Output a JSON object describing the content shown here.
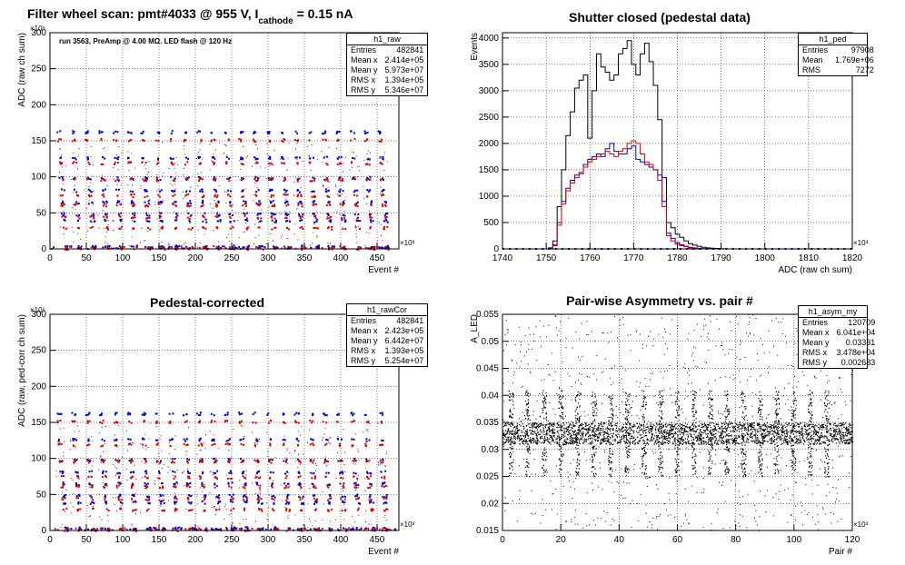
{
  "panels": [
    {
      "id": "raw",
      "title": "Filter wheel scan: pmt#4033 @   955 V, I",
      "title_sub": "cathode",
      "title_tail": " = 0.15 nA",
      "annotation": "run 3563, PreAmp @ 4.00 MΩ.  LED flash @  120 Hz",
      "stats": {
        "name": "h1_raw",
        "rows": [
          [
            "Entries",
            "482841"
          ],
          [
            "Mean x",
            "2.414e+05"
          ],
          [
            "Mean y",
            "5.973e+07"
          ],
          [
            "RMS x",
            "1.394e+05"
          ],
          [
            "RMS y",
            "5.346e+07"
          ]
        ]
      },
      "chart_data": {
        "type": "scatter",
        "title": "Filter wheel scan: pmt#4033 @   955 V, I cathode = 0.15 nA",
        "xlabel": "Event #",
        "ylabel": "ADC (raw ch sum)",
        "x_exponent": "×10³",
        "y_exponent": "×10⁶",
        "xlim": [
          0,
          480
        ],
        "ylim": [
          0,
          300
        ],
        "xticks": [
          0,
          50,
          100,
          150,
          200,
          250,
          300,
          350,
          400,
          450
        ],
        "yticks": [
          0,
          50,
          100,
          150,
          200,
          250,
          300
        ],
        "series": [
          {
            "color": "#0000cc",
            "levels": [
              163,
              127,
              99,
              82,
              66,
              49,
              40,
              4
            ]
          },
          {
            "color": "#dd0000",
            "levels": [
              152,
              120,
              97,
              75,
              62,
              45,
              30,
              2
            ]
          }
        ]
      }
    },
    {
      "id": "ped",
      "title": "Shutter closed (pedestal data)",
      "stats": {
        "name": "h1_ped",
        "rows": [
          [
            "Entries",
            "97908"
          ],
          [
            "Mean",
            "1.769e+06"
          ],
          [
            "RMS",
            "7272"
          ]
        ]
      },
      "chart_data": {
        "type": "line",
        "title": "Shutter closed (pedestal data)",
        "xlabel": "ADC (raw ch sum)",
        "ylabel": "Events",
        "x_exponent": "×10³",
        "xlim": [
          1740,
          1820
        ],
        "ylim": [
          0,
          4100
        ],
        "xticks": [
          1740,
          1750,
          1760,
          1770,
          1780,
          1790,
          1800,
          1810,
          1820
        ],
        "yticks": [
          0,
          500,
          1000,
          1500,
          2000,
          2500,
          3000,
          3500,
          4000
        ],
        "x": [
          1751,
          1752,
          1753,
          1754,
          1755,
          1756,
          1757,
          1758,
          1759,
          1760,
          1761,
          1762,
          1763,
          1764,
          1765,
          1766,
          1767,
          1768,
          1769,
          1770,
          1771,
          1772,
          1773,
          1774,
          1775,
          1776,
          1777,
          1778,
          1779,
          1780,
          1781,
          1782,
          1783,
          1784,
          1785,
          1786,
          1787,
          1788,
          1789,
          1790,
          1791,
          1792
        ],
        "series": [
          {
            "color": "#000000",
            "values": [
              20,
              150,
              800,
              1500,
              2150,
              2600,
              3050,
              3200,
              3300,
              2100,
              3000,
              3700,
              3450,
              3350,
              3200,
              3300,
              3700,
              3800,
              3950,
              3500,
              3300,
              3700,
              3900,
              3550,
              3100,
              2450,
              1350,
              500,
              400,
              280,
              220,
              150,
              100,
              70,
              50,
              30,
              20,
              12,
              8,
              5,
              3,
              0
            ]
          },
          {
            "color": "#0000cc",
            "values": [
              10,
              80,
              500,
              900,
              1150,
              1300,
              1400,
              1450,
              1600,
              1700,
              1750,
              1800,
              1750,
              1900,
              2000,
              1850,
              1800,
              1800,
              1900,
              1950,
              1700,
              1650,
              1600,
              1550,
              1500,
              1400,
              900,
              300,
              200,
              120,
              80,
              50,
              30,
              20,
              10,
              5,
              2,
              0,
              0,
              0,
              0,
              0
            ]
          },
          {
            "color": "#dd0000",
            "values": [
              5,
              60,
              450,
              850,
              1100,
              1250,
              1350,
              1420,
              1550,
              1650,
              1700,
              1750,
              1800,
              1850,
              1800,
              1750,
              1850,
              1900,
              2000,
              2050,
              2000,
              1800,
              1650,
              1600,
              1500,
              1300,
              800,
              250,
              150,
              90,
              60,
              40,
              20,
              10,
              5,
              2,
              0,
              0,
              0,
              0,
              0,
              0
            ]
          }
        ]
      }
    },
    {
      "id": "rawcor",
      "title": "Pedestal-corrected",
      "stats": {
        "name": "h1_rawCor",
        "rows": [
          [
            "Entries",
            "482841"
          ],
          [
            "Mean x",
            "2.423e+05"
          ],
          [
            "Mean y",
            "6.442e+07"
          ],
          [
            "RMS x",
            "1.393e+05"
          ],
          [
            "RMS y",
            "5.254e+07"
          ]
        ]
      },
      "chart_data": {
        "type": "scatter",
        "title": "Pedestal-corrected",
        "xlabel": "Event #",
        "ylabel": "ADC (raw, ped-corr ch sum)",
        "x_exponent": "×10³",
        "y_exponent": "×10⁶",
        "xlim": [
          0,
          480
        ],
        "ylim": [
          0,
          300
        ],
        "xticks": [
          0,
          50,
          100,
          150,
          200,
          250,
          300,
          350,
          400,
          450
        ],
        "yticks": [
          0,
          50,
          100,
          150,
          200,
          250,
          300
        ],
        "series": [
          {
            "color": "#0000cc",
            "levels": [
              163,
              127,
              99,
              82,
              66,
              49,
              40,
              4
            ]
          },
          {
            "color": "#dd0000",
            "levels": [
              152,
              120,
              97,
              75,
              62,
              45,
              30,
              2
            ]
          }
        ]
      }
    },
    {
      "id": "asym",
      "title": "Pair-wise Asymmetry vs. pair #",
      "stats": {
        "name": "h1_asym_my",
        "rows": [
          [
            "Entries",
            "120709"
          ],
          [
            "Mean x",
            "6.041e+04"
          ],
          [
            "Mean y",
            "0.03331"
          ],
          [
            "RMS x",
            "3.478e+04"
          ],
          [
            "RMS y",
            "0.002683"
          ]
        ]
      },
      "chart_data": {
        "type": "scatter",
        "title": "Pair-wise Asymmetry vs. pair #",
        "xlabel": "Pair #",
        "ylabel": "A_LED",
        "x_exponent": "×10³",
        "xlim": [
          0,
          120
        ],
        "ylim": [
          0.015,
          0.055
        ],
        "xticks": [
          0,
          20,
          40,
          60,
          80,
          100,
          120
        ],
        "yticks": [
          0.015,
          0.02,
          0.025,
          0.03,
          0.035,
          0.04,
          0.045,
          0.05,
          0.055
        ],
        "series": [
          {
            "color": "#000000",
            "band": [
              0.031,
              0.035
            ]
          }
        ]
      }
    }
  ]
}
